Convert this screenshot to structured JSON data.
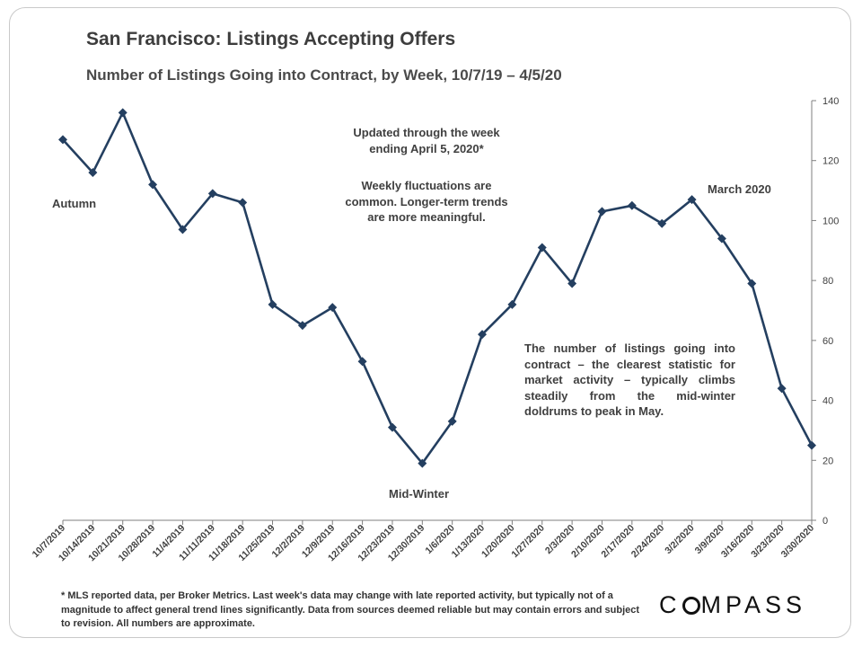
{
  "header": {
    "title": "San Francisco: Listings Accepting Offers",
    "subtitle": "Number of Listings Going into Contract, by Week, 10/7/19 – 4/5/20"
  },
  "annotations": {
    "updated_line1": "Updated through the week",
    "updated_line2": "ending April 5, 2020*",
    "fluct_line1": "Weekly fluctuations are",
    "fluct_line2": "common. Longer-term trends",
    "fluct_line3": "are more meaningful.",
    "autumn": "Autumn",
    "mid_winter": "Mid-Winter",
    "march": "March 2020",
    "contract_note": "The number of listings going into contract – the clearest statistic for market activity – typically climbs steadily from the mid-winter doldrums to peak in May."
  },
  "footnote": "* MLS reported data, per Broker Metrics. Last week's data may change with late reported activity, but typically not of a magnitude to affect general trend lines significantly. Data from sources deemed reliable but may contain errors and subject to revision. All numbers are approximate.",
  "logo": {
    "pre": "C",
    "post": "MPASS"
  },
  "colors": {
    "line": "#243f60",
    "marker": "#243f60",
    "axis": "#7f7f7f"
  },
  "chart_data": {
    "type": "line",
    "title": "San Francisco: Listings Accepting Offers",
    "subtitle": "Number of Listings Going into Contract, by Week, 10/7/19 – 4/5/20",
    "x": [
      "10/7/2019",
      "10/14/2019",
      "10/21/2019",
      "10/28/2019",
      "11/4/2019",
      "11/11/2019",
      "11/18/2019",
      "11/25/2019",
      "12/2/2019",
      "12/9/2019",
      "12/16/2019",
      "12/23/2019",
      "12/30/2019",
      "1/6/2020",
      "1/13/2020",
      "1/20/2020",
      "1/27/2020",
      "2/3/2020",
      "2/10/2020",
      "2/17/2020",
      "2/24/2020",
      "3/2/2020",
      "3/9/2020",
      "3/16/2020",
      "3/23/2020",
      "3/30/2020"
    ],
    "series": [
      {
        "values": [
          127,
          116,
          136,
          112,
          97,
          109,
          106,
          72,
          65,
          71,
          53,
          31,
          19,
          33,
          62,
          72,
          91,
          79,
          103,
          105,
          99,
          107,
          94,
          79,
          44,
          25
        ]
      }
    ],
    "yticks": [
      0,
      20,
      40,
      60,
      80,
      100,
      120,
      140
    ],
    "ylim": [
      0,
      140
    ],
    "y_axis_side": "right",
    "grid": false,
    "legend": "none"
  }
}
